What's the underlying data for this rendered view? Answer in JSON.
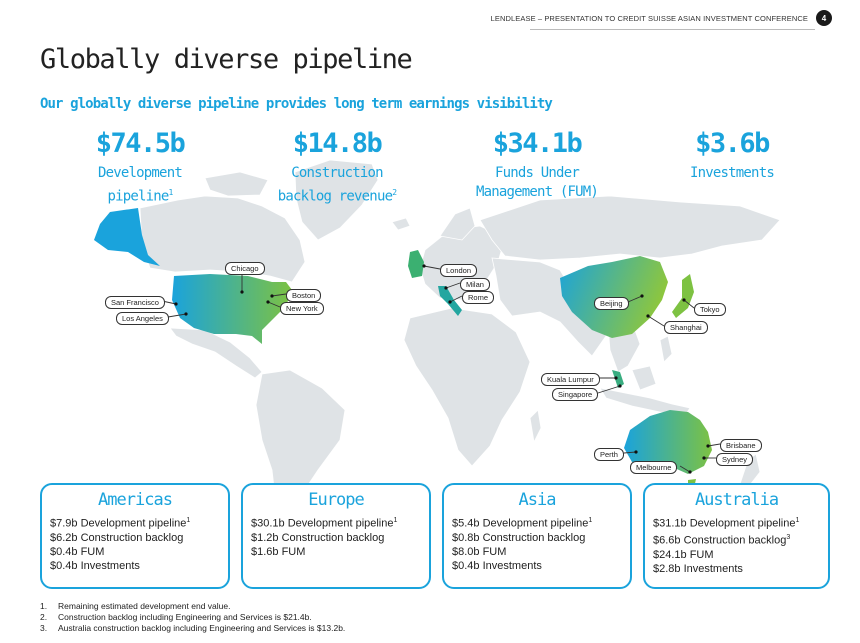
{
  "header": {
    "text": "LENDLEASE – PRESENTATION TO CREDIT SUISSE ASIAN INVESTMENT CONFERENCE",
    "page": "4"
  },
  "title": "Globally diverse pipeline",
  "subtitle": "Our globally diverse pipeline provides long term earnings visibility",
  "stats": [
    {
      "value": "$74.5b",
      "label1": "Development",
      "label2": "pipeline",
      "sup": "1"
    },
    {
      "value": "$14.8b",
      "label1": "Construction",
      "label2": "backlog revenue",
      "sup": "2"
    },
    {
      "value": "$34.1b",
      "label1": "Funds Under",
      "label2": "Management (FUM)",
      "sup": ""
    },
    {
      "value": "$3.6b",
      "label1": "Investments",
      "label2": "",
      "sup": ""
    }
  ],
  "cities": {
    "chicago": "Chicago",
    "boston": "Boston",
    "new_york": "New York",
    "san_francisco": "San Francisco",
    "los_angeles": "Los Angeles",
    "london": "London",
    "milan": "Milan",
    "rome": "Rome",
    "beijing": "Beijing",
    "tokyo": "Tokyo",
    "shanghai": "Shanghai",
    "kuala_lumpur": "Kuala Lumpur",
    "singapore": "Singapore",
    "perth": "Perth",
    "brisbane": "Brisbane",
    "sydney": "Sydney",
    "melbourne": "Melbourne"
  },
  "regions": [
    {
      "name": "Americas",
      "lines": [
        {
          "text": "$7.9b Development pipeline",
          "sup": "1"
        },
        {
          "text": "$6.2b Construction backlog",
          "sup": ""
        },
        {
          "text": "$0.4b FUM",
          "sup": ""
        },
        {
          "text": "$0.4b Investments",
          "sup": ""
        }
      ]
    },
    {
      "name": "Europe",
      "lines": [
        {
          "text": "$30.1b Development pipeline",
          "sup": "1"
        },
        {
          "text": "$1.2b Construction backlog",
          "sup": ""
        },
        {
          "text": "$1.6b FUM",
          "sup": ""
        }
      ]
    },
    {
      "name": "Asia",
      "lines": [
        {
          "text": "$5.4b Development pipeline",
          "sup": "1"
        },
        {
          "text": "$0.8b Construction backlog",
          "sup": ""
        },
        {
          "text": "$8.0b FUM",
          "sup": ""
        },
        {
          "text": "$0.4b Investments",
          "sup": ""
        }
      ]
    },
    {
      "name": "Australia",
      "lines": [
        {
          "text": "$31.1b Development pipeline",
          "sup": "1"
        },
        {
          "text": "$6.6b Construction backlog",
          "sup": "3"
        },
        {
          "text": "$24.1b FUM",
          "sup": ""
        },
        {
          "text": "$2.8b Investments",
          "sup": ""
        }
      ]
    }
  ],
  "footnotes": [
    {
      "num": "1.",
      "text": "Remaining estimated development end value."
    },
    {
      "num": "2.",
      "text": "Construction backlog including Engineering and Services is $21.4b."
    },
    {
      "num": "3.",
      "text": "Australia construction backlog including Engineering and Services is $13.2b."
    }
  ],
  "colors": {
    "accent": "#1aa3dc",
    "map_grey": "#dfe3e6",
    "gradient_start": "#1aa3dc",
    "gradient_end": "#7dc242"
  }
}
